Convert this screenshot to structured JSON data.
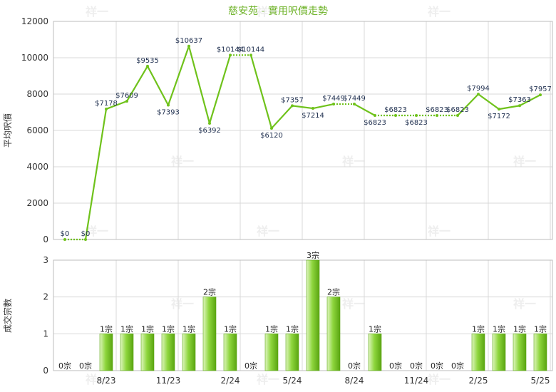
{
  "chart_data": {
    "title": "慈安苑 - 實用呎價走勢",
    "price_chart": {
      "type": "line",
      "ylabel": "平均呎價",
      "ylim": [
        0,
        12000
      ],
      "yticks": [
        0,
        2000,
        4000,
        6000,
        8000,
        10000,
        12000
      ],
      "grid": true,
      "dotted_segments_when_repeat": true,
      "points": [
        {
          "value": 0,
          "label": "$0"
        },
        {
          "value": 0,
          "label": "$0"
        },
        {
          "value": 7178,
          "label": "$7178"
        },
        {
          "value": 7609,
          "label": "$7609"
        },
        {
          "value": 9535,
          "label": "$9535"
        },
        {
          "value": 7393,
          "label": "$7393"
        },
        {
          "value": 10637,
          "label": "$10637"
        },
        {
          "value": 6392,
          "label": "$6392"
        },
        {
          "value": 10144,
          "label": "$10144"
        },
        {
          "value": 10144,
          "label": "$10144"
        },
        {
          "value": 6120,
          "label": "$6120"
        },
        {
          "value": 7357,
          "label": "$7357"
        },
        {
          "value": 7214,
          "label": "$7214"
        },
        {
          "value": 7449,
          "label": "$7449"
        },
        {
          "value": 7449,
          "label": "$7449"
        },
        {
          "value": 6823,
          "label": "$6823"
        },
        {
          "value": 6823,
          "label": "$6823"
        },
        {
          "value": 6823,
          "label": "$6823"
        },
        {
          "value": 6823,
          "label": "$6823"
        },
        {
          "value": 6823,
          "label": "$6823"
        },
        {
          "value": 7994,
          "label": "$7994"
        },
        {
          "value": 7172,
          "label": "$7172"
        },
        {
          "value": 7363,
          "label": "$7363"
        },
        {
          "value": 7957,
          "label": "$7957"
        }
      ]
    },
    "count_chart": {
      "type": "bar",
      "ylabel": "成交宗數",
      "ylim": [
        0,
        3
      ],
      "yticks": [
        0,
        1,
        2,
        3
      ],
      "grid": true,
      "values": [
        0,
        0,
        1,
        1,
        1,
        1,
        1,
        2,
        1,
        0,
        1,
        1,
        3,
        2,
        0,
        1,
        0,
        0,
        0,
        0,
        1,
        1,
        1,
        1
      ],
      "labels": [
        "0宗",
        "0宗",
        "1宗",
        "1宗",
        "1宗",
        "1宗",
        "1宗",
        "2宗",
        "1宗",
        "0宗",
        "1宗",
        "1宗",
        "3宗",
        "2宗",
        "0宗",
        "1宗",
        "0宗",
        "0宗",
        "0宗",
        "0宗",
        "1宗",
        "1宗",
        "1宗",
        "1宗"
      ]
    },
    "x_ticks": [
      {
        "index": 2,
        "label": "8/23"
      },
      {
        "index": 5,
        "label": "11/23"
      },
      {
        "index": 8,
        "label": "2/24"
      },
      {
        "index": 11,
        "label": "5/24"
      },
      {
        "index": 14,
        "label": "8/24"
      },
      {
        "index": 17,
        "label": "11/24"
      },
      {
        "index": 20,
        "label": "2/25"
      },
      {
        "index": 23,
        "label": "5/25"
      }
    ],
    "colors": {
      "line": "#6fc21b",
      "bar_light": "#dff5bf",
      "bar_mid": "#8ed63d",
      "bar_dark": "#5aa511",
      "grid": "#d9d9d9",
      "title": "#6fb32a"
    },
    "watermark": "祥一"
  }
}
